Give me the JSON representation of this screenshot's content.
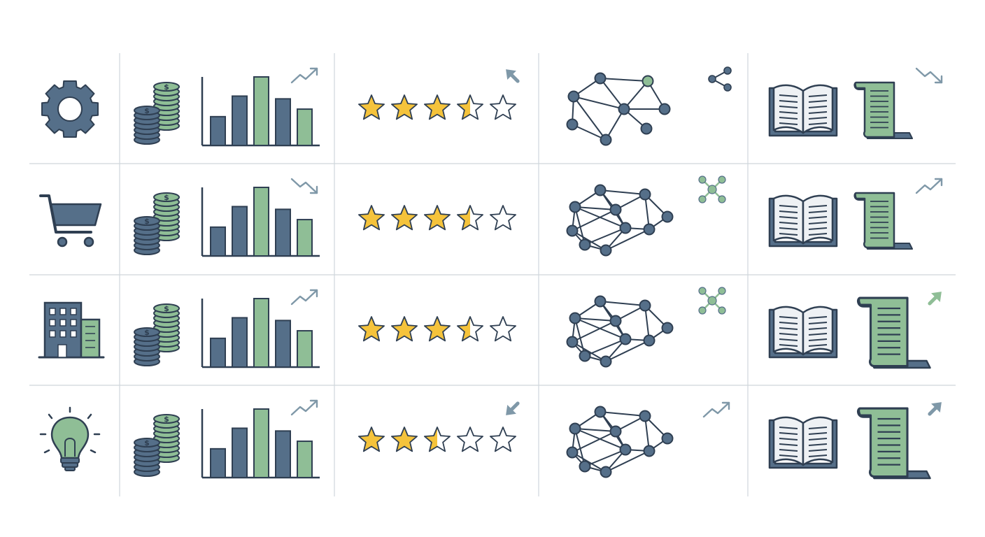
{
  "colors": {
    "navy": "#556f89",
    "outline": "#2f3f52",
    "green": "#8fbe96",
    "star": "#f5c33b",
    "paper": "#eef1f4",
    "grid": "#cfd5db",
    "arrow": "#7f98a8"
  },
  "rows": [
    {
      "category_icon": "gear-icon",
      "bar_chart": {
        "values": [
          0.42,
          0.72,
          1.0,
          0.68,
          0.53
        ],
        "highlight_index": 2,
        "trend": "up"
      },
      "rating": {
        "stars": 3.5,
        "max": 5,
        "indicator": "arrow-up-left"
      },
      "network": {
        "variant": "sparse",
        "corner_icon": "share-icon"
      },
      "docs": {
        "book": "open-book-icon",
        "scroll": "scroll-icon",
        "scroll_size": "small",
        "trend": "down"
      }
    },
    {
      "category_icon": "shopping-cart-icon",
      "bar_chart": {
        "values": [
          0.42,
          0.72,
          1.0,
          0.68,
          0.53
        ],
        "highlight_index": 2,
        "trend": "down"
      },
      "rating": {
        "stars": 3.5,
        "max": 5,
        "indicator": "none"
      },
      "network": {
        "variant": "dense",
        "corner_icon": "cluster-icon"
      },
      "docs": {
        "book": "open-book-icon",
        "scroll": "scroll-icon",
        "scroll_size": "small",
        "trend": "up"
      }
    },
    {
      "category_icon": "building-icon",
      "bar_chart": {
        "values": [
          0.42,
          0.72,
          1.0,
          0.68,
          0.53
        ],
        "highlight_index": 2,
        "trend": "up"
      },
      "rating": {
        "stars": 3.5,
        "max": 5,
        "indicator": "none"
      },
      "network": {
        "variant": "dense",
        "corner_icon": "cluster-icon"
      },
      "docs": {
        "book": "open-book-icon",
        "scroll": "scroll-icon",
        "scroll_size": "large",
        "trend": "arrow-up-right"
      }
    },
    {
      "category_icon": "lightbulb-icon",
      "bar_chart": {
        "values": [
          0.42,
          0.72,
          1.0,
          0.68,
          0.53
        ],
        "highlight_index": 2,
        "trend": "up"
      },
      "rating": {
        "stars": 2.5,
        "max": 5,
        "indicator": "arrow-down-left"
      },
      "network": {
        "variant": "dense",
        "corner_icon": "trend-up-icon"
      },
      "docs": {
        "book": "open-book-icon",
        "scroll": "scroll-icon",
        "scroll_size": "large",
        "trend": "arrow-up-right"
      }
    }
  ]
}
